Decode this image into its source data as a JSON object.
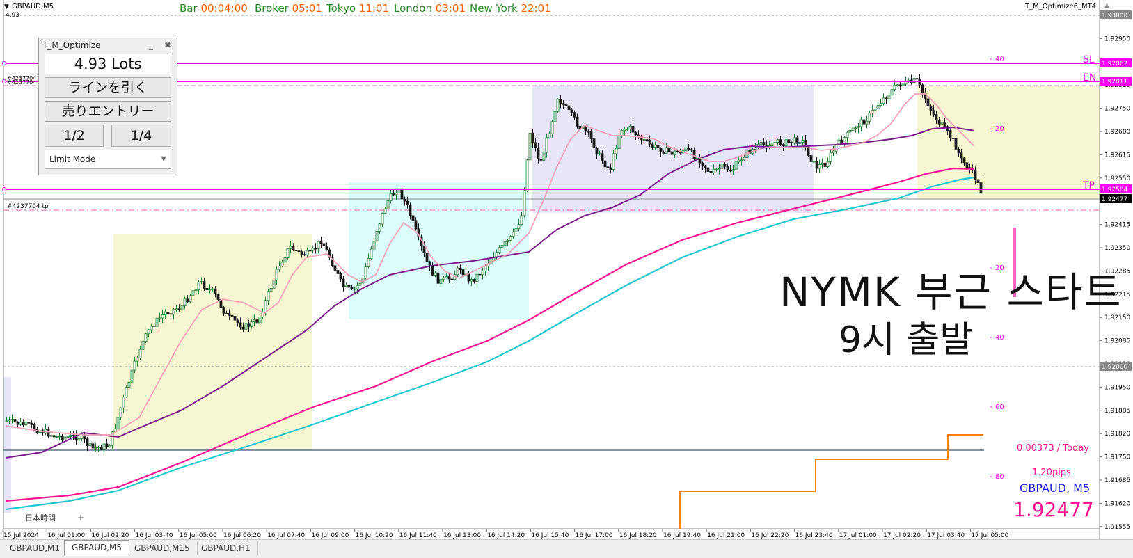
{
  "chart_header": {
    "symbol_tf": "GBPAUD,M5",
    "lots_small": "4.93",
    "indicator_name": "T_M_Optimize6_MT4"
  },
  "timers": [
    {
      "label": "Bar",
      "value": "00:04:00"
    },
    {
      "label": "Broker",
      "value": "05:01"
    },
    {
      "label": "Tokyo",
      "value": "11:01"
    },
    {
      "label": "London",
      "value": "03:01"
    },
    {
      "label": "New York",
      "value": "22:01"
    }
  ],
  "panel": {
    "title": "T_M_Optimize",
    "minimize": "...",
    "close": "✖",
    "lots": "4.93 Lots",
    "draw_line": "ラインを引く",
    "sell_entry": "売りエントリー",
    "half": "1/2",
    "quarter": "1/4",
    "mode": "Limit Mode"
  },
  "order_labels": {
    "order_a": "#4237704",
    "order_b": "#4237704",
    "order_tp": "#4237704 tp"
  },
  "line_labels": {
    "sl": "SL",
    "en": "EN",
    "tp": "TP"
  },
  "pips_scale": [
    "40",
    "20",
    "20",
    "40",
    "60",
    "80"
  ],
  "price_axis": [
    "1.93000",
    "1.92950",
    "1.92880",
    "1.92810",
    "1.92750",
    "1.92680",
    "1.92615",
    "1.92550",
    "1.92480",
    "1.92415",
    "1.92350",
    "1.92285",
    "1.92215",
    "1.92150",
    "1.92085",
    "1.92020",
    "1.91950",
    "1.91885",
    "1.91820",
    "1.91750",
    "1.91685",
    "1.91620",
    "1.91555"
  ],
  "price_tags": {
    "sl": "1.92862",
    "en": "1.92811",
    "tp": "1.92504",
    "current": "1.92477",
    "level": "1.92000"
  },
  "time_axis": [
    "15 Jul 2024",
    "16 Jul 01:00",
    "16 Jul 02:20",
    "16 Jul 03:40",
    "16 Jul 05:00",
    "16 Jul 06:20",
    "16 Jul 07:40",
    "16 Jul 09:00",
    "16 Jul 10:20",
    "16 Jul 11:40",
    "16 Jul 13:00",
    "16 Jul 14:20",
    "16 Jul 15:40",
    "16 Jul 17:00",
    "16 Jul 18:20",
    "16 Jul 19:40",
    "16 Jul 21:00",
    "16 Jul 22:20",
    "16 Jul 23:40",
    "17 Jul 01:00",
    "17 Jul 02:20",
    "17 Jul 03:40",
    "17 Jul 05:00"
  ],
  "bottom_info": {
    "today": "0.00373 / Today",
    "spread": "1.20pips",
    "symbol": "GBPAUD, M5",
    "price": "1.92477",
    "timezone": "日本時間",
    "plus": "+"
  },
  "handwriting": {
    "line1": "NYMK 부근 스타트",
    "line2": "9시 출발"
  },
  "tabs": [
    "GBPAUD,M1",
    "GBPAUD,M5",
    "GBPAUD,M15",
    "GBPAUD,H1"
  ],
  "colors": {
    "magenta": "#ff00ff",
    "pink_ma": "#ff1493",
    "cyan_ma": "#20c8d0",
    "purple_ma": "#7a1a8a",
    "light_pink_ma": "#f6a0b8",
    "bull": "#1a7a2a",
    "bear": "#1a1a1a",
    "orange": "#ff8000"
  }
}
